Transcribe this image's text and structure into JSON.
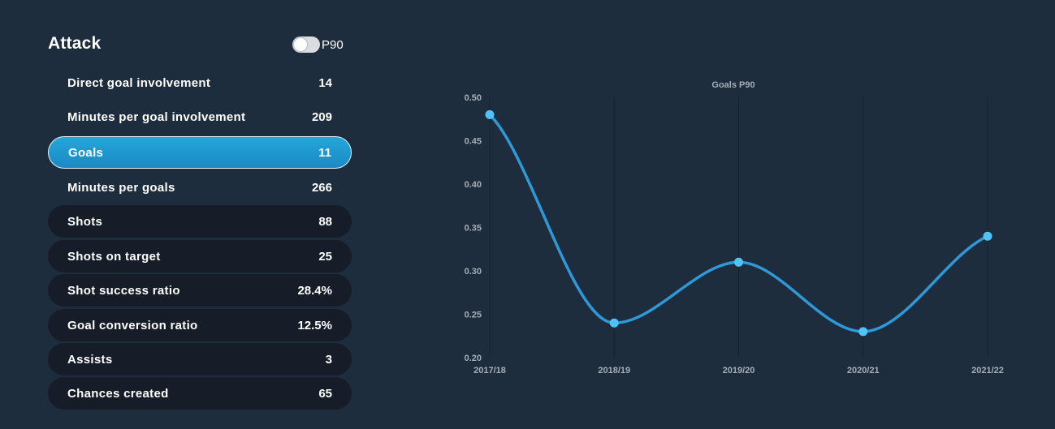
{
  "panel": {
    "title": "Attack",
    "toggle_label": "P90",
    "toggle_on": false
  },
  "stats": [
    {
      "label": "Direct goal involvement",
      "value": "14",
      "style": "plain"
    },
    {
      "label": "Minutes per goal involvement",
      "value": "209",
      "style": "plain"
    },
    {
      "label": "Goals",
      "value": "11",
      "style": "active"
    },
    {
      "label": "Minutes per goals",
      "value": "266",
      "style": "plain"
    },
    {
      "label": "Shots",
      "value": "88",
      "style": "dark"
    },
    {
      "label": "Shots on target",
      "value": "25",
      "style": "dark"
    },
    {
      "label": "Shot success ratio",
      "value": "28.4%",
      "style": "dark"
    },
    {
      "label": "Goal conversion ratio",
      "value": "12.5%",
      "style": "dark"
    },
    {
      "label": "Assists",
      "value": "3",
      "style": "dark"
    },
    {
      "label": "Chances created",
      "value": "65",
      "style": "dark"
    }
  ],
  "colors": {
    "line": "#2f98d6",
    "point": "#4fc3f7",
    "grid": "#16222e",
    "background": "#1d2d3d"
  },
  "chart_data": {
    "type": "line",
    "title": "Goals P90",
    "categories": [
      "2017/18",
      "2018/19",
      "2019/20",
      "2020/21",
      "2021/22"
    ],
    "values": [
      0.48,
      0.24,
      0.31,
      0.23,
      0.34
    ],
    "ylim": [
      0.2,
      0.5
    ],
    "yticks": [
      "0.50",
      "0.45",
      "0.40",
      "0.35",
      "0.30",
      "0.25",
      "0.20"
    ],
    "xlabel": "",
    "ylabel": "",
    "grid": true,
    "smooth": true
  }
}
